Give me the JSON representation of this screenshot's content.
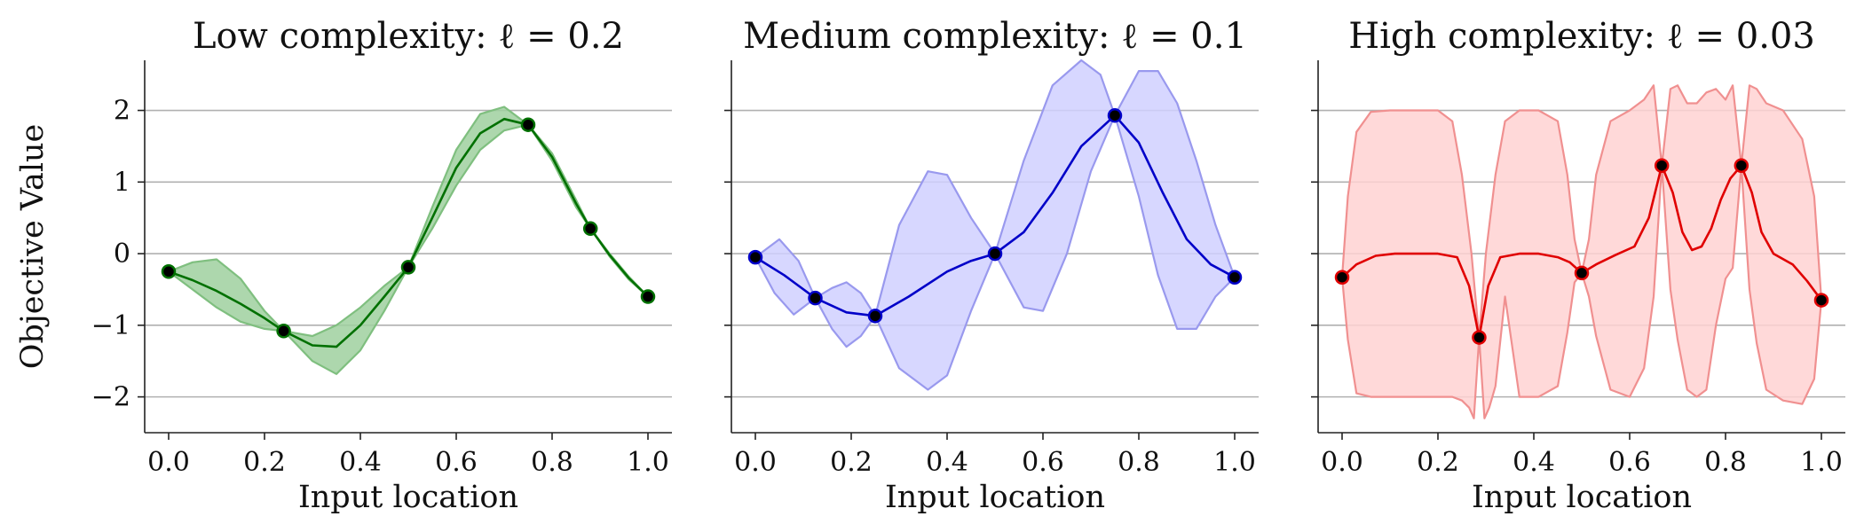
{
  "chart_data": [
    {
      "type": "line",
      "title": "Low complexity: ℓ = 0.2",
      "xlabel": "Input location",
      "ylabel": "Objective Value",
      "xlim": [
        -0.05,
        1.05
      ],
      "ylim": [
        -2.5,
        2.7
      ],
      "xticks": [
        "0.0",
        "0.2",
        "0.4",
        "0.6",
        "0.8",
        "1.0"
      ],
      "yticks": [
        "2",
        "1",
        "0",
        "−1",
        "−2"
      ],
      "grid": "horizontal",
      "colors": {
        "line": "#007000",
        "band": "#9fd09f",
        "band_edge": "#7fbf7f",
        "point_fill": "#000000",
        "point_edge": "#007000"
      },
      "observations": {
        "x": [
          0.0,
          0.24,
          0.5,
          0.75,
          0.88,
          1.0
        ],
        "y": [
          -0.25,
          -1.08,
          -0.19,
          1.8,
          0.35,
          -0.6
        ]
      },
      "mean": {
        "x": [
          0.0,
          0.05,
          0.1,
          0.15,
          0.2,
          0.24,
          0.3,
          0.35,
          0.4,
          0.45,
          0.5,
          0.55,
          0.6,
          0.65,
          0.7,
          0.75,
          0.8,
          0.85,
          0.88,
          0.92,
          0.96,
          1.0
        ],
        "y": [
          -0.25,
          -0.37,
          -0.52,
          -0.7,
          -0.9,
          -1.08,
          -1.28,
          -1.3,
          -1.0,
          -0.6,
          -0.19,
          0.5,
          1.2,
          1.68,
          1.88,
          1.8,
          1.35,
          0.7,
          0.35,
          -0.02,
          -0.34,
          -0.6
        ]
      },
      "upper": {
        "x": [
          0.0,
          0.05,
          0.1,
          0.15,
          0.2,
          0.24,
          0.3,
          0.35,
          0.4,
          0.45,
          0.5,
          0.55,
          0.6,
          0.65,
          0.7,
          0.75,
          0.8,
          0.85,
          0.88,
          0.92,
          0.96,
          1.0
        ],
        "y": [
          -0.25,
          -0.12,
          -0.08,
          -0.35,
          -0.8,
          -1.08,
          -1.15,
          -1.0,
          -0.75,
          -0.45,
          -0.19,
          0.65,
          1.45,
          1.95,
          2.05,
          1.8,
          1.4,
          0.75,
          0.35,
          0.0,
          -0.32,
          -0.6
        ]
      },
      "lower": {
        "x": [
          0.0,
          0.05,
          0.1,
          0.15,
          0.2,
          0.24,
          0.3,
          0.35,
          0.4,
          0.45,
          0.5,
          0.55,
          0.6,
          0.65,
          0.7,
          0.75,
          0.8,
          0.85,
          0.88,
          0.92,
          0.96,
          1.0
        ],
        "y": [
          -0.25,
          -0.5,
          -0.75,
          -0.95,
          -1.05,
          -1.08,
          -1.5,
          -1.68,
          -1.35,
          -0.8,
          -0.19,
          0.35,
          0.95,
          1.45,
          1.72,
          1.8,
          1.3,
          0.65,
          0.35,
          -0.04,
          -0.36,
          -0.6
        ]
      }
    },
    {
      "type": "line",
      "title": "Medium complexity: ℓ = 0.1",
      "xlabel": "Input location",
      "xlim": [
        -0.05,
        1.05
      ],
      "ylim": [
        -2.5,
        2.7
      ],
      "xticks": [
        "0.0",
        "0.2",
        "0.4",
        "0.6",
        "0.8",
        "1.0"
      ],
      "grid": "horizontal",
      "colors": {
        "line": "#0000c8",
        "band": "#d0d0ff",
        "band_edge": "#9999ee",
        "point_fill": "#000000",
        "point_edge": "#0000c8"
      },
      "observations": {
        "x": [
          0.0,
          0.125,
          0.25,
          0.5,
          0.75,
          1.0
        ],
        "y": [
          -0.05,
          -0.62,
          -0.87,
          0.0,
          1.93,
          -0.33
        ]
      },
      "mean": {
        "x": [
          0.0,
          0.06,
          0.125,
          0.19,
          0.25,
          0.32,
          0.4,
          0.45,
          0.5,
          0.56,
          0.62,
          0.68,
          0.75,
          0.8,
          0.85,
          0.9,
          0.95,
          1.0
        ],
        "y": [
          -0.05,
          -0.3,
          -0.62,
          -0.82,
          -0.87,
          -0.6,
          -0.25,
          -0.1,
          0.0,
          0.3,
          0.85,
          1.5,
          1.93,
          1.55,
          0.85,
          0.2,
          -0.15,
          -0.33
        ]
      },
      "upper": {
        "x": [
          0.0,
          0.05,
          0.09,
          0.125,
          0.16,
          0.19,
          0.22,
          0.25,
          0.3,
          0.36,
          0.4,
          0.45,
          0.5,
          0.56,
          0.62,
          0.68,
          0.72,
          0.75,
          0.8,
          0.84,
          0.88,
          0.92,
          0.96,
          1.0
        ],
        "y": [
          -0.05,
          0.2,
          -0.1,
          -0.62,
          -0.48,
          -0.4,
          -0.55,
          -0.87,
          0.4,
          1.15,
          1.1,
          0.5,
          0.0,
          1.3,
          2.35,
          2.7,
          2.5,
          1.93,
          2.55,
          2.55,
          2.1,
          1.3,
          0.4,
          -0.33
        ]
      },
      "lower": {
        "x": [
          0.0,
          0.04,
          0.08,
          0.125,
          0.16,
          0.19,
          0.22,
          0.25,
          0.3,
          0.36,
          0.4,
          0.45,
          0.5,
          0.56,
          0.6,
          0.65,
          0.7,
          0.75,
          0.8,
          0.84,
          0.88,
          0.92,
          0.96,
          1.0
        ],
        "y": [
          -0.05,
          -0.55,
          -0.85,
          -0.62,
          -1.05,
          -1.3,
          -1.15,
          -0.87,
          -1.6,
          -1.9,
          -1.7,
          -0.8,
          0.0,
          -0.75,
          -0.8,
          0.0,
          1.15,
          1.93,
          0.8,
          -0.3,
          -1.05,
          -1.05,
          -0.6,
          -0.33
        ]
      }
    },
    {
      "type": "line",
      "title": "High complexity: ℓ = 0.03",
      "xlabel": "Input location",
      "xlim": [
        -0.05,
        1.05
      ],
      "ylim": [
        -2.5,
        2.7
      ],
      "xticks": [
        "0.0",
        "0.2",
        "0.4",
        "0.6",
        "0.8",
        "1.0"
      ],
      "grid": "horizontal",
      "colors": {
        "line": "#e00000",
        "band": "#ffd2d2",
        "band_edge": "#f09090",
        "point_fill": "#000000",
        "point_edge": "#e00000"
      },
      "observations": {
        "x": [
          0.0,
          0.286,
          0.5,
          0.667,
          0.833,
          1.0
        ],
        "y": [
          -0.33,
          -1.17,
          -0.27,
          1.23,
          1.23,
          -0.65
        ]
      },
      "mean": {
        "x": [
          0.0,
          0.03,
          0.07,
          0.11,
          0.15,
          0.2,
          0.24,
          0.265,
          0.286,
          0.305,
          0.33,
          0.37,
          0.41,
          0.45,
          0.475,
          0.5,
          0.53,
          0.57,
          0.61,
          0.64,
          0.667,
          0.69,
          0.71,
          0.73,
          0.75,
          0.77,
          0.79,
          0.81,
          0.833,
          0.855,
          0.875,
          0.9,
          0.94,
          0.97,
          1.0
        ],
        "y": [
          -0.33,
          -0.15,
          -0.03,
          0.0,
          0.0,
          0.0,
          -0.05,
          -0.45,
          -1.17,
          -0.45,
          -0.05,
          0.0,
          0.0,
          -0.05,
          -0.12,
          -0.27,
          -0.15,
          -0.02,
          0.1,
          0.5,
          1.23,
          0.85,
          0.3,
          0.05,
          0.1,
          0.35,
          0.75,
          1.05,
          1.23,
          0.85,
          0.3,
          0.0,
          -0.15,
          -0.38,
          -0.65
        ]
      },
      "upper": {
        "x": [
          0.0,
          0.012,
          0.03,
          0.06,
          0.1,
          0.15,
          0.2,
          0.23,
          0.25,
          0.27,
          0.286,
          0.3,
          0.32,
          0.34,
          0.37,
          0.41,
          0.45,
          0.47,
          0.485,
          0.5,
          0.515,
          0.53,
          0.56,
          0.6,
          0.63,
          0.65,
          0.667,
          0.685,
          0.7,
          0.72,
          0.74,
          0.76,
          0.78,
          0.8,
          0.815,
          0.833,
          0.85,
          0.865,
          0.885,
          0.92,
          0.96,
          0.985,
          1.0
        ],
        "y": [
          -0.33,
          0.8,
          1.7,
          1.98,
          2.0,
          2.0,
          2.0,
          1.85,
          1.1,
          0.0,
          -1.17,
          0.0,
          1.1,
          1.85,
          2.0,
          2.0,
          1.85,
          1.1,
          0.2,
          -0.27,
          0.2,
          1.1,
          1.85,
          2.0,
          2.15,
          2.35,
          1.23,
          2.3,
          2.35,
          2.1,
          2.1,
          2.25,
          2.3,
          2.15,
          2.35,
          1.23,
          2.35,
          2.3,
          2.1,
          2.0,
          1.6,
          0.8,
          -0.65
        ]
      },
      "lower": {
        "x": [
          0.0,
          0.012,
          0.03,
          0.06,
          0.1,
          0.15,
          0.2,
          0.23,
          0.25,
          0.265,
          0.275,
          0.286,
          0.297,
          0.307,
          0.32,
          0.34,
          0.37,
          0.41,
          0.45,
          0.47,
          0.485,
          0.5,
          0.515,
          0.53,
          0.56,
          0.6,
          0.63,
          0.65,
          0.667,
          0.685,
          0.7,
          0.72,
          0.74,
          0.76,
          0.78,
          0.8,
          0.815,
          0.833,
          0.85,
          0.865,
          0.885,
          0.92,
          0.96,
          0.985,
          1.0
        ],
        "y": [
          -0.33,
          -1.2,
          -1.95,
          -2.0,
          -2.0,
          -2.0,
          -2.0,
          -2.0,
          -2.05,
          -2.15,
          -2.3,
          -1.17,
          -2.3,
          -2.15,
          -1.85,
          -0.6,
          -2.0,
          -2.0,
          -1.85,
          -1.1,
          -0.4,
          -0.27,
          -0.6,
          -1.15,
          -1.9,
          -2.0,
          -1.6,
          -0.6,
          1.23,
          -0.5,
          -1.2,
          -1.9,
          -2.0,
          -1.9,
          -1.0,
          -0.35,
          -0.2,
          1.23,
          -0.5,
          -1.25,
          -1.9,
          -2.05,
          -2.1,
          -1.75,
          -0.65
        ]
      }
    }
  ]
}
